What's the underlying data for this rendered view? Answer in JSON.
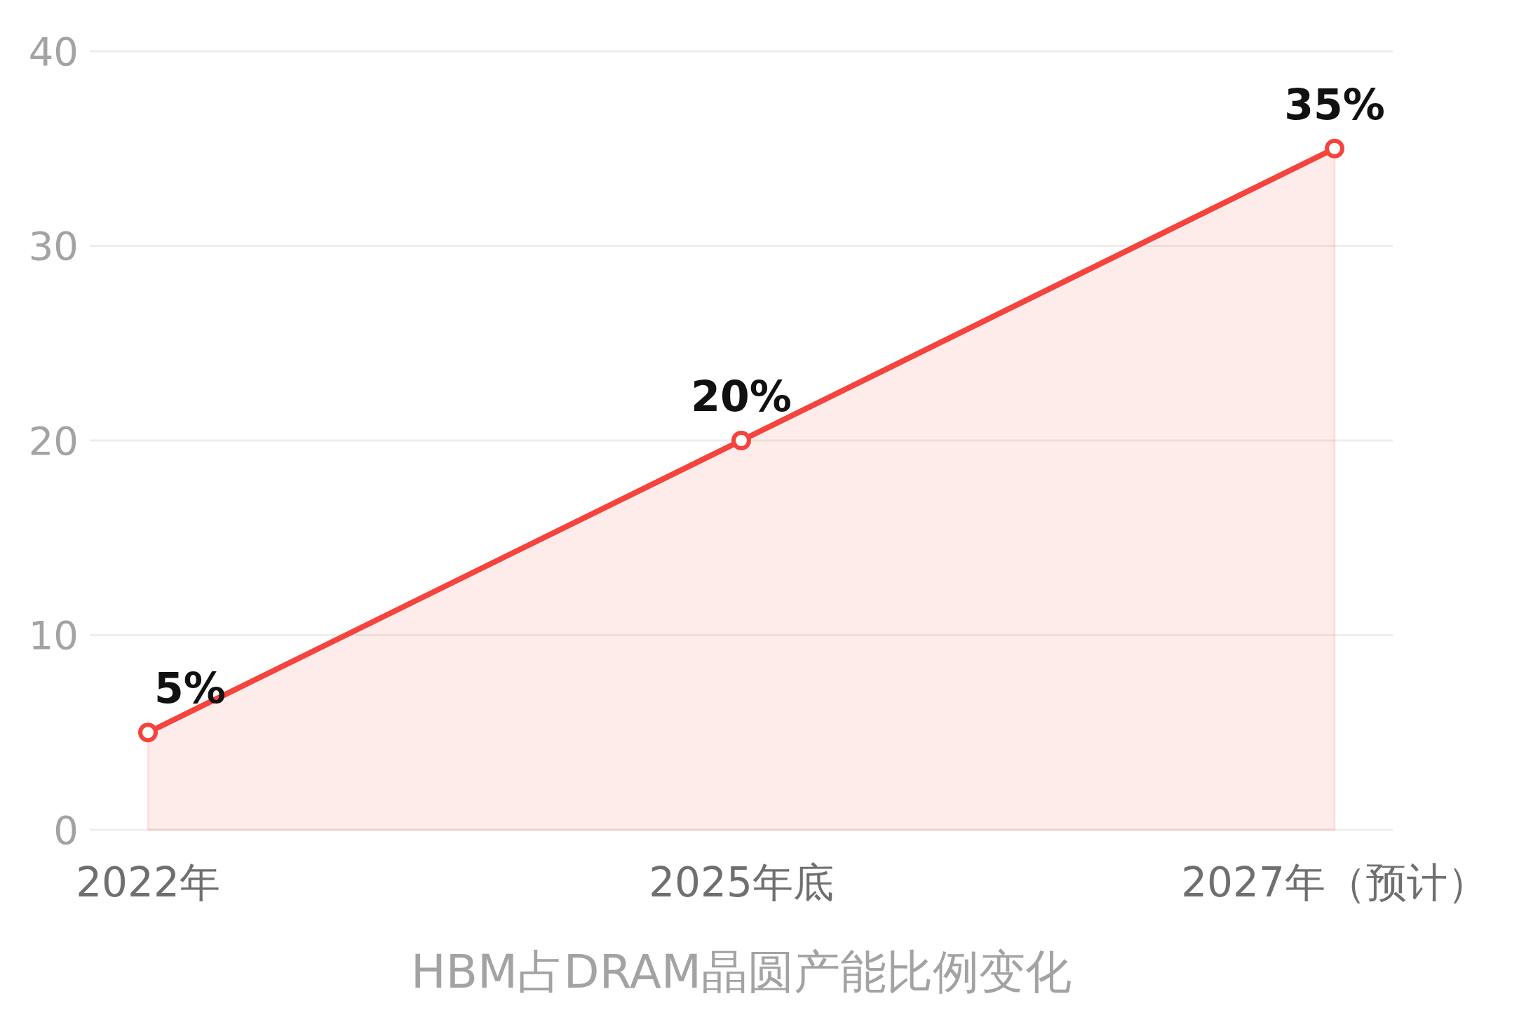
{
  "chart_data": {
    "type": "area",
    "xlabel": "HBM占DRAM晶圆产能比例变化",
    "categories": [
      "2022年",
      "2025年底",
      "2027年（预计）"
    ],
    "series": [
      {
        "color": "#f5433d",
        "values": [
          5,
          20,
          35
        ],
        "value_labels": [
          "5%",
          "20%",
          "35%"
        ]
      }
    ],
    "ylim": [
      0,
      40
    ],
    "yticks": [
      0,
      10,
      20,
      30,
      40
    ],
    "grid": "y",
    "marker": "circle"
  }
}
